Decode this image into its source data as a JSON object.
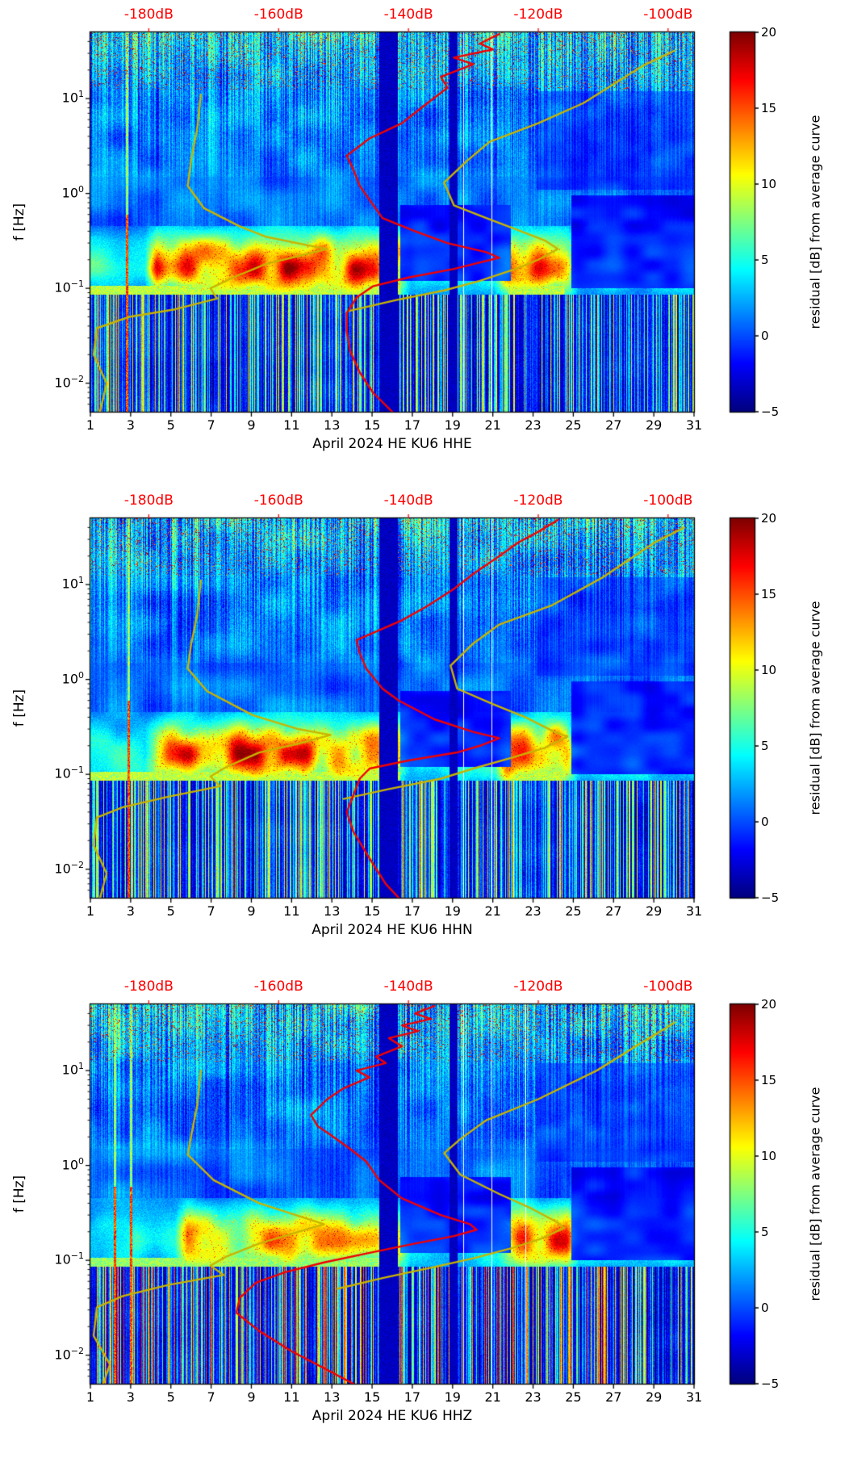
{
  "colors": {
    "top_axis_red": "#ff0000",
    "curve_red": "#f40000",
    "curve_yellow": "#c9b400",
    "axis_black": "#000000",
    "background": "#ffffff"
  },
  "chart_shared": {
    "ylabel": "f [Hz]",
    "x_ticks": [
      1,
      3,
      5,
      7,
      9,
      11,
      13,
      15,
      17,
      19,
      21,
      23,
      25,
      27,
      29,
      31
    ],
    "x_range_days": [
      1,
      31
    ],
    "y_ticks": [
      {
        "base": "10",
        "exp": "1",
        "value": 10
      },
      {
        "base": "10",
        "exp": "0",
        "value": 1
      },
      {
        "base": "10",
        "exp": "−1",
        "value": 0.1
      },
      {
        "base": "10",
        "exp": "−2",
        "value": 0.01
      }
    ],
    "y_range_hz": [
      0.005,
      50
    ],
    "top_axis": {
      "labels": [
        {
          "label": "-180dB",
          "db": -180
        },
        {
          "label": "-160dB",
          "db": -160
        },
        {
          "label": "-140dB",
          "db": -140
        },
        {
          "label": "-120dB",
          "db": -120
        },
        {
          "label": "-100dB",
          "db": -100
        }
      ],
      "db_range": [
        -189,
        -96
      ]
    },
    "colorbar": {
      "label": "residual [dB] from average curve",
      "vmin": -5,
      "vmax": 20,
      "ticks": [
        {
          "label": "20",
          "value": 20
        },
        {
          "label": "15",
          "value": 15
        },
        {
          "label": "10",
          "value": 10
        },
        {
          "label": "5",
          "value": 5
        },
        {
          "label": "0",
          "value": 0
        },
        {
          "label": "−5",
          "value": -5
        }
      ]
    }
  },
  "chart_data": [
    {
      "type": "heatmap",
      "xlabel": "April 2024 HE KU6  HHE",
      "red_curve_db_hz": [
        [
          -126,
          48
        ],
        [
          -129,
          38
        ],
        [
          -127,
          33
        ],
        [
          -133,
          27
        ],
        [
          -130,
          23
        ],
        [
          -135,
          17
        ],
        [
          -134,
          13
        ],
        [
          -138,
          8
        ],
        [
          -141,
          5.5
        ],
        [
          -146,
          3.8
        ],
        [
          -149.5,
          2.5
        ],
        [
          -148.5,
          1.8
        ],
        [
          -147.5,
          1.2
        ],
        [
          -144,
          0.55
        ],
        [
          -139,
          0.4
        ],
        [
          -134,
          0.3
        ],
        [
          -128,
          0.24
        ],
        [
          -126,
          0.21
        ],
        [
          -130,
          0.18
        ],
        [
          -133,
          0.16
        ],
        [
          -140,
          0.13
        ],
        [
          -145.5,
          0.105
        ],
        [
          -148,
          0.08
        ],
        [
          -149.5,
          0.055
        ],
        [
          -149.5,
          0.035
        ],
        [
          -149,
          0.022
        ],
        [
          -147.5,
          0.013
        ],
        [
          -145.5,
          0.008
        ],
        [
          -142.5,
          0.005
        ]
      ],
      "yellow_curves_db_hz": [
        [
          [
            -172,
            11
          ],
          [
            -172.5,
            5
          ],
          [
            -173.5,
            2.2
          ],
          [
            -174,
            1.2
          ],
          [
            -171.5,
            0.7
          ],
          [
            -166,
            0.45
          ],
          [
            -162,
            0.35
          ],
          [
            -155,
            0.28
          ],
          [
            -152.5,
            0.26
          ],
          [
            -158,
            0.21
          ],
          [
            -162,
            0.18
          ],
          [
            -167,
            0.13
          ],
          [
            -170.5,
            0.1
          ],
          [
            -169.5,
            0.078
          ],
          [
            -176,
            0.06
          ],
          [
            -183,
            0.05
          ],
          [
            -188,
            0.038
          ],
          [
            -188.5,
            0.02
          ],
          [
            -186.5,
            0.01
          ],
          [
            -187.5,
            0.005
          ]
        ],
        [
          [
            -99,
            32
          ],
          [
            -104,
            22
          ],
          [
            -113,
            9
          ],
          [
            -120,
            5.5
          ],
          [
            -127.5,
            3.5
          ],
          [
            -131,
            2.2
          ],
          [
            -134.5,
            1.3
          ],
          [
            -133,
            0.75
          ],
          [
            -128,
            0.55
          ],
          [
            -123.5,
            0.42
          ],
          [
            -119,
            0.32
          ],
          [
            -117,
            0.26
          ],
          [
            -120,
            0.2
          ],
          [
            -123.5,
            0.16
          ],
          [
            -129,
            0.12
          ],
          [
            -134.5,
            0.095
          ],
          [
            -142,
            0.075
          ],
          [
            -149,
            0.058
          ]
        ]
      ],
      "texture": {
        "seed": 11,
        "dark_day_bands": [
          [
            15.35,
            16.3
          ],
          [
            18.85,
            19.25
          ]
        ],
        "gap_days": [
          19.55,
          20.95
        ],
        "hot_windows": [
          [
            4.3,
            16.3,
            14
          ],
          [
            21.7,
            24.7,
            13
          ]
        ],
        "band_center_hz": 0.17,
        "band_default_amp": 4,
        "bright_line_days": [
          [
            1,
            16.4
          ],
          [
            21.8,
            24.6
          ]
        ],
        "bright_line_amp": 9,
        "cold_patches": [
          [
            16.4,
            21.9,
            0.12,
            0.75,
            0.85
          ],
          [
            24.9,
            31,
            0.1,
            0.95,
            0.85
          ],
          [
            23.2,
            31,
            1.1,
            12,
            0.45
          ]
        ],
        "red_streak_days": [
          2.8
        ],
        "stripe_max": 12
      }
    },
    {
      "type": "heatmap",
      "xlabel": "April 2024 HE KU6  HHN",
      "red_curve_db_hz": [
        [
          -117,
          48
        ],
        [
          -120,
          36
        ],
        [
          -123,
          28
        ],
        [
          -126,
          20
        ],
        [
          -130,
          13
        ],
        [
          -133,
          9
        ],
        [
          -137,
          6
        ],
        [
          -141,
          4.2
        ],
        [
          -145,
          3.2
        ],
        [
          -148,
          2.6
        ],
        [
          -147.5,
          1.9
        ],
        [
          -146.5,
          1.3
        ],
        [
          -144,
          0.8
        ],
        [
          -141.5,
          0.6
        ],
        [
          -136,
          0.38
        ],
        [
          -130,
          0.28
        ],
        [
          -126,
          0.24
        ],
        [
          -129,
          0.2
        ],
        [
          -132.5,
          0.17
        ],
        [
          -140,
          0.14
        ],
        [
          -146,
          0.115
        ],
        [
          -147.5,
          0.09
        ],
        [
          -148.5,
          0.06
        ],
        [
          -149.5,
          0.04
        ],
        [
          -148.5,
          0.025
        ],
        [
          -146,
          0.013
        ],
        [
          -143.5,
          0.007
        ],
        [
          -141.5,
          0.005
        ]
      ],
      "yellow_curves_db_hz": [
        [
          [
            -172,
            11
          ],
          [
            -172.5,
            5
          ],
          [
            -173.5,
            2.3
          ],
          [
            -174,
            1.3
          ],
          [
            -171,
            0.75
          ],
          [
            -164,
            0.42
          ],
          [
            -157,
            0.3
          ],
          [
            -152,
            0.26
          ],
          [
            -157,
            0.21
          ],
          [
            -163,
            0.17
          ],
          [
            -168,
            0.12
          ],
          [
            -170.5,
            0.095
          ],
          [
            -169,
            0.075
          ],
          [
            -177,
            0.058
          ],
          [
            -184,
            0.045
          ],
          [
            -188,
            0.035
          ],
          [
            -188.5,
            0.018
          ],
          [
            -186.5,
            0.009
          ],
          [
            -187.5,
            0.005
          ]
        ],
        [
          [
            -97.5,
            40
          ],
          [
            -102,
            28
          ],
          [
            -110,
            12
          ],
          [
            -118,
            6
          ],
          [
            -126,
            3.8
          ],
          [
            -130,
            2.4
          ],
          [
            -133.5,
            1.4
          ],
          [
            -132.5,
            0.8
          ],
          [
            -127,
            0.55
          ],
          [
            -122,
            0.4
          ],
          [
            -117.5,
            0.28
          ],
          [
            -115.5,
            0.25
          ],
          [
            -119,
            0.19
          ],
          [
            -124,
            0.15
          ],
          [
            -130,
            0.115
          ],
          [
            -135,
            0.09
          ],
          [
            -143,
            0.07
          ],
          [
            -150,
            0.055
          ]
        ]
      ],
      "texture": {
        "seed": 22,
        "dark_day_bands": [
          [
            15.35,
            16.3
          ],
          [
            18.85,
            19.25
          ]
        ],
        "gap_days": [
          19.55,
          20.95
        ],
        "hot_windows": [
          [
            4.3,
            16.3,
            13
          ],
          [
            21.7,
            24.7,
            14
          ]
        ],
        "band_center_hz": 0.17,
        "band_default_amp": 4,
        "bright_line_days": [
          [
            1,
            16.4
          ],
          [
            21.8,
            24.6
          ]
        ],
        "bright_line_amp": 9,
        "cold_patches": [
          [
            16.4,
            21.9,
            0.12,
            0.75,
            0.85
          ],
          [
            24.9,
            31,
            0.1,
            0.95,
            0.85
          ],
          [
            23.2,
            31,
            1.1,
            12,
            0.45
          ]
        ],
        "red_streak_days": [
          2.9
        ],
        "stripe_max": 12
      }
    },
    {
      "type": "heatmap",
      "xlabel": "April 2024 HE KU6  HHZ",
      "red_curve_db_hz": [
        [
          -136,
          48
        ],
        [
          -139,
          40
        ],
        [
          -136.5,
          35
        ],
        [
          -141,
          30
        ],
        [
          -138.5,
          26
        ],
        [
          -143,
          22
        ],
        [
          -141,
          18
        ],
        [
          -145,
          14
        ],
        [
          -143.5,
          12
        ],
        [
          -148,
          10
        ],
        [
          -146,
          8.5
        ],
        [
          -150,
          6.5
        ],
        [
          -152.5,
          5
        ],
        [
          -155,
          3.4
        ],
        [
          -154,
          2.6
        ],
        [
          -152,
          2.1
        ],
        [
          -149,
          1.5
        ],
        [
          -146.5,
          1.1
        ],
        [
          -144.5,
          0.7
        ],
        [
          -141,
          0.45
        ],
        [
          -135,
          0.3
        ],
        [
          -130.5,
          0.24
        ],
        [
          -129.5,
          0.21
        ],
        [
          -133,
          0.18
        ],
        [
          -139,
          0.15
        ],
        [
          -146,
          0.12
        ],
        [
          -153,
          0.095
        ],
        [
          -159,
          0.075
        ],
        [
          -163.5,
          0.058
        ],
        [
          -166,
          0.04
        ],
        [
          -166.5,
          0.028
        ],
        [
          -163,
          0.018
        ],
        [
          -158,
          0.011
        ],
        [
          -152.5,
          0.007
        ],
        [
          -148.5,
          0.005
        ]
      ],
      "yellow_curves_db_hz": [
        [
          [
            -172,
            10
          ],
          [
            -172.5,
            4.5
          ],
          [
            -173.5,
            2
          ],
          [
            -174,
            1.3
          ],
          [
            -170,
            0.7
          ],
          [
            -163,
            0.4
          ],
          [
            -156,
            0.28
          ],
          [
            -153,
            0.24
          ],
          [
            -158,
            0.19
          ],
          [
            -163,
            0.15
          ],
          [
            -168,
            0.11
          ],
          [
            -170.5,
            0.088
          ],
          [
            -168.5,
            0.07
          ],
          [
            -177,
            0.055
          ],
          [
            -184,
            0.042
          ],
          [
            -188,
            0.032
          ],
          [
            -188.5,
            0.016
          ],
          [
            -186,
            0.008
          ],
          [
            -187,
            0.005
          ]
        ],
        [
          [
            -99,
            32
          ],
          [
            -105,
            18
          ],
          [
            -111,
            10
          ],
          [
            -120,
            5
          ],
          [
            -128,
            3
          ],
          [
            -132,
            1.9
          ],
          [
            -134.5,
            1.35
          ],
          [
            -132,
            0.8
          ],
          [
            -126,
            0.5
          ],
          [
            -121,
            0.35
          ],
          [
            -117,
            0.25
          ],
          [
            -116,
            0.22
          ],
          [
            -119.5,
            0.17
          ],
          [
            -124,
            0.135
          ],
          [
            -130,
            0.105
          ],
          [
            -136,
            0.085
          ],
          [
            -144,
            0.065
          ],
          [
            -151,
            0.05
          ]
        ]
      ],
      "texture": {
        "seed": 33,
        "dark_day_bands": [
          [
            15.35,
            16.3
          ],
          [
            18.85,
            19.25
          ]
        ],
        "gap_days": [
          19.55,
          20.95,
          22.65
        ],
        "hot_windows": [
          [
            5.8,
            16.3,
            11
          ],
          [
            21.8,
            24.7,
            13
          ]
        ],
        "band_center_hz": 0.17,
        "band_default_amp": 3.5,
        "bright_line_days": [
          [
            1,
            16.4
          ]
        ],
        "bright_line_amp": 8,
        "cold_patches": [
          [
            16.4,
            21.9,
            0.12,
            0.75,
            0.85
          ],
          [
            24.9,
            31,
            0.1,
            0.95,
            0.85
          ],
          [
            23.2,
            31,
            1.1,
            12,
            0.45
          ]
        ],
        "red_streak_days": [
          2.2,
          3.0
        ],
        "stripe_max": 17
      }
    }
  ]
}
